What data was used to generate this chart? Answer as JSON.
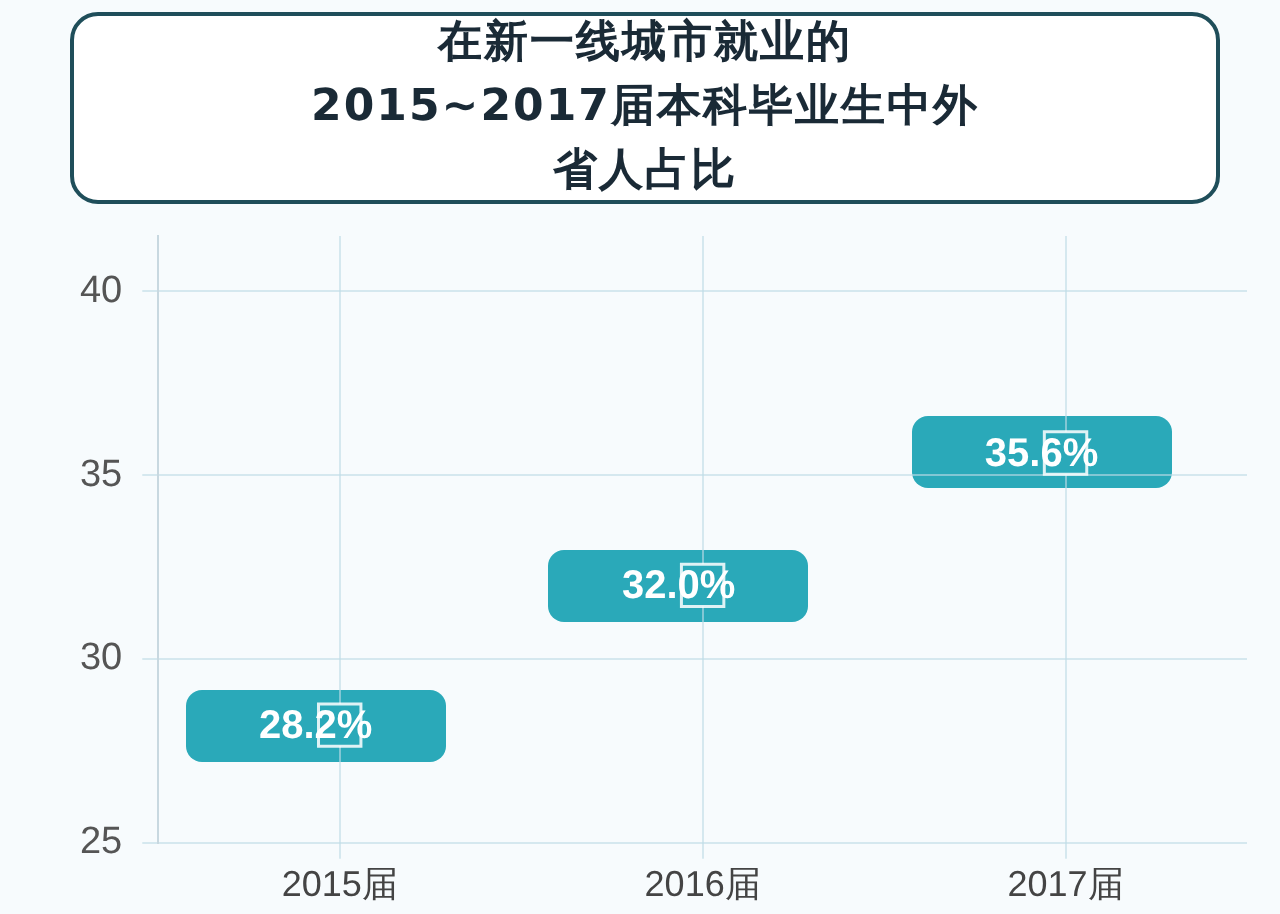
{
  "chart_data": {
    "type": "scatter",
    "title": "在新一线城市就业的2015~2017届本科毕业生中外省人占比",
    "categories": [
      "2015届",
      "2016届",
      "2017届"
    ],
    "values": [
      28.2,
      32.0,
      35.6
    ],
    "value_labels": [
      "28.2%",
      "32.0%",
      "35.6%"
    ],
    "color": "#2aa9b9",
    "marker": "square",
    "ylim": [
      25,
      41.5
    ],
    "yticks": [
      25,
      30,
      35,
      40
    ],
    "grid": true
  }
}
